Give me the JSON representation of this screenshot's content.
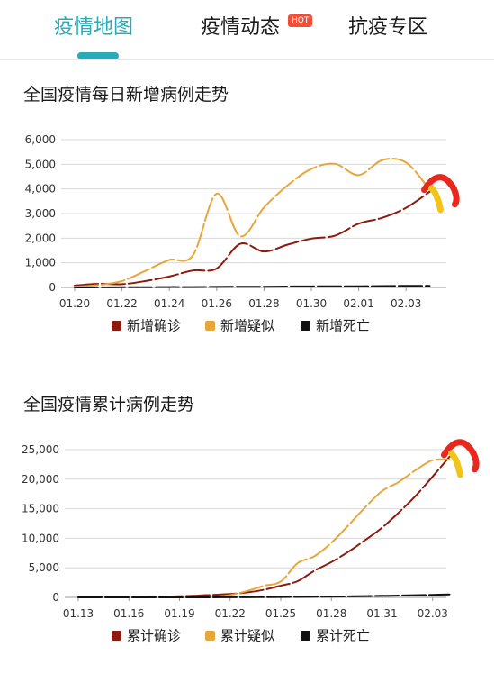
{
  "tabs": [
    {
      "label": "疫情地图",
      "active": true
    },
    {
      "label": "疫情动态",
      "badge": "HOT"
    },
    {
      "label": "抗疫专区"
    }
  ],
  "colors": {
    "accent": "#2aa9b7",
    "confirmed": "#8b1a10",
    "suspected": "#e7a63a",
    "death": "#111111",
    "annotation": "#e8271d",
    "annotation2": "#f2c418"
  },
  "chart_data": [
    {
      "type": "line",
      "title": "全国疫情每日新增病例走势",
      "x_ticks": [
        "01.20",
        "01.22",
        "01.24",
        "01.26",
        "01.28",
        "01.30",
        "02.01",
        "02.03"
      ],
      "x": [
        "01.20",
        "01.21",
        "01.22",
        "01.23",
        "01.24",
        "01.25",
        "01.26",
        "01.27",
        "01.28",
        "01.29",
        "01.30",
        "01.31",
        "02.01",
        "02.02",
        "02.03",
        "02.04"
      ],
      "ylim": [
        0,
        6000
      ],
      "y_ticks": [
        "0",
        "1,000",
        "2,000",
        "3,000",
        "4,000",
        "5,000",
        "6,000"
      ],
      "grid": true,
      "legend_position": "bottom",
      "series": [
        {
          "name": "新增确诊",
          "color": "#8b1a10",
          "values": [
            77,
            149,
            131,
            259,
            444,
            688,
            769,
            1771,
            1459,
            1737,
            1982,
            2102,
            2590,
            2829,
            3235,
            3887
          ]
        },
        {
          "name": "新增疑似",
          "color": "#e7a63a",
          "values": [
            27,
            100,
            257,
            680,
            1118,
            1309,
            3806,
            2077,
            3248,
            4148,
            4812,
            5019,
            4562,
            5173,
            5072,
            3971
          ]
        },
        {
          "name": "新增死亡",
          "color": "#111111",
          "values": [
            0,
            3,
            8,
            8,
            16,
            15,
            24,
            26,
            26,
            38,
            43,
            46,
            45,
            57,
            64,
            65
          ]
        }
      ]
    },
    {
      "type": "line",
      "title": "全国疫情累计病例走势",
      "x_ticks": [
        "01.13",
        "01.16",
        "01.19",
        "01.22",
        "01.25",
        "01.28",
        "01.31",
        "02.03"
      ],
      "x": [
        "01.13",
        "01.14",
        "01.15",
        "01.16",
        "01.17",
        "01.18",
        "01.19",
        "01.20",
        "01.21",
        "01.22",
        "01.23",
        "01.24",
        "01.25",
        "01.26",
        "01.27",
        "01.28",
        "01.29",
        "01.30",
        "01.31",
        "02.01",
        "02.02",
        "02.03",
        "02.04"
      ],
      "ylim": [
        0,
        25000
      ],
      "y_ticks": [
        "0",
        "5,000",
        "10,000",
        "15,000",
        "20,000",
        "25,000"
      ],
      "grid": true,
      "legend_position": "bottom",
      "series": [
        {
          "name": "累计确诊",
          "color": "#8b1a10",
          "values": [
            41,
            41,
            41,
            45,
            62,
            121,
            198,
            291,
            440,
            571,
            830,
            1287,
            1975,
            2744,
            4515,
            5974,
            7711,
            9692,
            11791,
            14380,
            17205,
            20438,
            23800
          ]
        },
        {
          "name": "累计疑似",
          "color": "#e7a63a",
          "values": [
            0,
            0,
            0,
            0,
            0,
            0,
            0,
            54,
            37,
            393,
            1072,
            1965,
            2684,
            5794,
            6973,
            9239,
            12167,
            15238,
            17988,
            19544,
            21558,
            23214,
            23300
          ]
        },
        {
          "name": "累计死亡",
          "color": "#111111",
          "values": [
            1,
            1,
            2,
            2,
            2,
            3,
            3,
            6,
            9,
            17,
            25,
            41,
            56,
            80,
            106,
            132,
            170,
            213,
            259,
            304,
            361,
            425,
            490
          ]
        }
      ]
    }
  ]
}
